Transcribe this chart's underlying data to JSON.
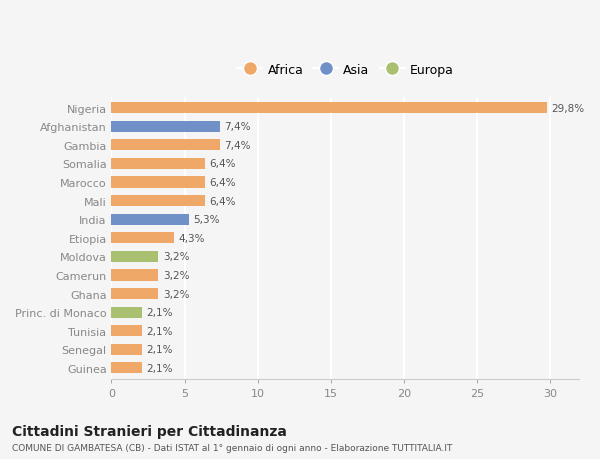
{
  "countries": [
    "Nigeria",
    "Afghanistan",
    "Gambia",
    "Somalia",
    "Marocco",
    "Mali",
    "India",
    "Etiopia",
    "Moldova",
    "Camerun",
    "Ghana",
    "Princ. di Monaco",
    "Tunisia",
    "Senegal",
    "Guinea"
  ],
  "values": [
    29.8,
    7.4,
    7.4,
    6.4,
    6.4,
    6.4,
    5.3,
    4.3,
    3.2,
    3.2,
    3.2,
    2.1,
    2.1,
    2.1,
    2.1
  ],
  "labels": [
    "29,8%",
    "7,4%",
    "7,4%",
    "6,4%",
    "6,4%",
    "6,4%",
    "5,3%",
    "4,3%",
    "3,2%",
    "3,2%",
    "3,2%",
    "2,1%",
    "2,1%",
    "2,1%",
    "2,1%"
  ],
  "continents": [
    "Africa",
    "Asia",
    "Africa",
    "Africa",
    "Africa",
    "Africa",
    "Asia",
    "Africa",
    "Europa",
    "Africa",
    "Africa",
    "Europa",
    "Africa",
    "Africa",
    "Africa"
  ],
  "colors": {
    "Africa": "#F0A868",
    "Asia": "#7090C8",
    "Europa": "#A8C070"
  },
  "bg_color": "#f5f5f5",
  "title_main": "Cittadini Stranieri per Cittadinanza",
  "title_sub": "COMUNE DI GAMBATESA (CB) - Dati ISTAT al 1° gennaio di ogni anno - Elaborazione TUTTITALIA.IT",
  "xlabel_vals": [
    0,
    5,
    10,
    15,
    20,
    25,
    30
  ],
  "xlim": [
    0,
    32
  ],
  "bar_height": 0.6
}
